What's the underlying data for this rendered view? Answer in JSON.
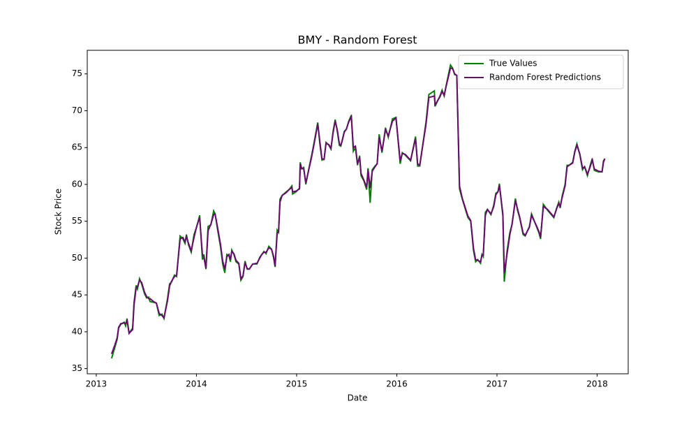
{
  "chart_data": {
    "type": "line",
    "title": "BMY - Random Forest",
    "x_label": "Date",
    "y_label": "Stock Price",
    "x": [
      2013.153,
      2013.188,
      2013.209,
      2013.223,
      2013.244,
      2013.279,
      2013.293,
      2013.307,
      2013.328,
      2013.363,
      2013.377,
      2013.398,
      2013.411,
      2013.432,
      2013.453,
      2013.481,
      2013.502,
      2013.523,
      2013.537,
      2013.572,
      2013.6,
      2013.628,
      2013.656,
      2013.676,
      2013.711,
      2013.732,
      2013.753,
      2013.781,
      2013.802,
      2013.837,
      2013.865,
      2013.886,
      2013.9,
      2013.921,
      2013.948,
      2013.976,
      2014.004,
      2014.032,
      2014.06,
      2014.074,
      2014.095,
      2014.116,
      2014.144,
      2014.172,
      2014.186,
      2014.213,
      2014.241,
      2014.262,
      2014.283,
      2014.304,
      2014.325,
      2014.339,
      2014.353,
      2014.374,
      2014.395,
      2014.423,
      2014.444,
      2014.465,
      2014.485,
      2014.506,
      2014.527,
      2014.562,
      2014.604,
      2014.632,
      2014.653,
      2014.674,
      2014.695,
      2014.723,
      2014.75,
      2014.771,
      2014.785,
      2014.806,
      2014.82,
      2014.834,
      2014.855,
      2014.897,
      2014.925,
      2014.953,
      2014.96,
      2014.995,
      2015.029,
      2015.036,
      2015.05,
      2015.071,
      2015.092,
      2015.12,
      2015.148,
      2015.176,
      2015.211,
      2015.232,
      2015.253,
      2015.274,
      2015.294,
      2015.322,
      2015.343,
      2015.364,
      2015.385,
      2015.406,
      2015.427,
      2015.441,
      2015.455,
      2015.476,
      2015.497,
      2015.518,
      2015.546,
      2015.566,
      2015.587,
      2015.608,
      2015.629,
      2015.643,
      2015.671,
      2015.699,
      2015.713,
      2015.734,
      2015.755,
      2015.783,
      2015.804,
      2015.824,
      2015.852,
      2015.887,
      2015.915,
      2015.957,
      2015.992,
      2016.034,
      2016.055,
      2016.083,
      2016.138,
      2016.187,
      2016.208,
      2016.229,
      2016.292,
      2016.32,
      2016.375,
      2016.382,
      2016.431,
      2016.452,
      2016.473,
      2016.494,
      2016.536,
      2016.557,
      2016.578,
      2016.599,
      2016.626,
      2016.654,
      2016.71,
      2016.738,
      2016.766,
      2016.787,
      2016.808,
      2016.836,
      2016.85,
      2016.863,
      2016.884,
      2016.905,
      2016.94,
      2016.968,
      2016.989,
      2017.01,
      2017.024,
      2017.059,
      2017.073,
      2017.101,
      2017.129,
      2017.15,
      2017.184,
      2017.205,
      2017.226,
      2017.261,
      2017.282,
      2017.324,
      2017.345,
      2017.394,
      2017.422,
      2017.435,
      2017.463,
      2017.505,
      2017.568,
      2017.596,
      2017.617,
      2017.631,
      2017.652,
      2017.68,
      2017.7,
      2017.721,
      2017.756,
      2017.777,
      2017.798,
      2017.826,
      2017.854,
      2017.875,
      2017.903,
      2017.931,
      2017.951,
      2017.972,
      2018.014,
      2018.049,
      2018.063,
      2018.077
    ],
    "series": [
      {
        "name": "True Values",
        "color": "#008000",
        "values": [
          36.4,
          38,
          39,
          40.5,
          41,
          41.3,
          40.8,
          41.8,
          39.8,
          40.5,
          44,
          46.3,
          45.8,
          47.2,
          46.5,
          45.2,
          44.6,
          44.7,
          44.1,
          44,
          43.9,
          42.2,
          42.4,
          41.8,
          44.5,
          46.5,
          46.8,
          47.7,
          47.5,
          53,
          52.6,
          52,
          53.2,
          51.8,
          50.8,
          53.2,
          54.3,
          55.8,
          49.8,
          50.5,
          48.5,
          54.3,
          54.5,
          56.4,
          56,
          53.7,
          51.5,
          49.2,
          48,
          50.5,
          50.3,
          49.5,
          51.1,
          50.5,
          49.5,
          49.2,
          47,
          47.5,
          49.6,
          48.5,
          48.5,
          49.2,
          49.2,
          50.1,
          50.5,
          50.9,
          50.6,
          51.6,
          51.2,
          50,
          48.8,
          53.8,
          53.5,
          58,
          58.5,
          59,
          59.3,
          59.8,
          58.7,
          59,
          59.5,
          63,
          62.1,
          62.3,
          60,
          62,
          63.8,
          65.8,
          68.4,
          65.5,
          63.3,
          63.4,
          65.7,
          65.3,
          64.8,
          67.2,
          68.8,
          67.2,
          65.3,
          65.2,
          66,
          67.2,
          67.5,
          68.5,
          69.4,
          64.5,
          65,
          62.6,
          63.9,
          61.2,
          60.5,
          59.3,
          62.2,
          57.5,
          62,
          62.5,
          62.8,
          66.8,
          64.3,
          67.7,
          66.4,
          68.9,
          69.1,
          62.8,
          64.3,
          64,
          63.2,
          66.5,
          62.5,
          62.5,
          68.5,
          72.2,
          72.7,
          70.6,
          72,
          72.8,
          72,
          73.5,
          76.2,
          75.8,
          74.9,
          74.8,
          59.4,
          58,
          55.5,
          55,
          51,
          49.5,
          49.8,
          49.3,
          50.5,
          50.2,
          56.2,
          56.6,
          55.9,
          57.2,
          58.8,
          59,
          60.1,
          55.7,
          46.8,
          51,
          53.5,
          54.5,
          58.1,
          56.5,
          55.5,
          53.2,
          53,
          54.3,
          56,
          54.3,
          53.3,
          52.6,
          57.3,
          56.5,
          55.5,
          56.8,
          57.6,
          56.8,
          58.5,
          60,
          62.6,
          62.6,
          63,
          64.5,
          65.5,
          64.1,
          62,
          62.4,
          61.2,
          62.6,
          63.5,
          61.9,
          61.7,
          61.7,
          63.2,
          63.5
        ]
      },
      {
        "name": "Random Forest Predictions",
        "color": "#6a0a6e",
        "values": [
          37,
          38.3,
          39.2,
          40.6,
          41.1,
          41.2,
          41.1,
          41.5,
          39.8,
          40.3,
          43.6,
          46,
          46.1,
          47,
          46.7,
          45.4,
          44.8,
          44.5,
          44.5,
          44.1,
          43.9,
          42.5,
          42.2,
          41.9,
          44.2,
          46.2,
          46.9,
          47.5,
          47.7,
          52.6,
          52.8,
          52.2,
          52.9,
          52,
          51,
          52.8,
          54.4,
          55.5,
          50.4,
          50.1,
          48.6,
          53.7,
          54.6,
          55.9,
          56,
          54,
          51.8,
          49.6,
          48.5,
          50.2,
          50.5,
          49.8,
          50.9,
          50.6,
          49.7,
          49.3,
          47.2,
          47.6,
          49.4,
          48.6,
          48.5,
          49.2,
          49.3,
          50,
          50.5,
          50.8,
          50.8,
          51.4,
          51.2,
          50.2,
          48.9,
          53.4,
          53.6,
          57.6,
          58.5,
          58.9,
          59.3,
          59.6,
          59,
          59.1,
          59.4,
          62.8,
          62.2,
          62.1,
          60.2,
          61.9,
          63.6,
          65.6,
          68.2,
          65.8,
          63.5,
          63.4,
          65.6,
          65.4,
          64.9,
          67,
          68.6,
          67.4,
          65.5,
          65.3,
          65.9,
          67.1,
          67.5,
          68.4,
          69.2,
          65,
          65.2,
          62.8,
          63.7,
          61.5,
          60.6,
          59.6,
          62,
          59.5,
          61.8,
          62.4,
          62.8,
          66.4,
          64.5,
          67.4,
          66.6,
          68.6,
          69,
          63.2,
          64.2,
          64.1,
          63.3,
          66.2,
          62.8,
          62.6,
          68.2,
          71.8,
          72,
          70.8,
          71.9,
          72.6,
          72.1,
          73.4,
          75.8,
          75.7,
          75,
          74.8,
          59.8,
          58.1,
          55.7,
          55.1,
          51.3,
          49.8,
          49.7,
          49.5,
          50.4,
          50.4,
          55.8,
          56.6,
          56,
          57,
          58.6,
          59,
          59.9,
          56,
          48,
          50.6,
          53.2,
          54.6,
          57.8,
          56.7,
          55.6,
          53.4,
          53.1,
          54.2,
          55.8,
          54.4,
          53.5,
          52.8,
          57,
          56.6,
          55.6,
          56.7,
          57.4,
          57,
          58.3,
          59.8,
          62.4,
          62.6,
          62.9,
          64.4,
          65.3,
          64.2,
          62.2,
          62.4,
          61.4,
          62.4,
          63.3,
          62.1,
          61.8,
          61.7,
          63,
          63.5
        ]
      }
    ],
    "xlim": [
      2012.91,
      2018.31
    ],
    "xticks": [
      2013,
      2014,
      2015,
      2016,
      2017,
      2018
    ],
    "ylim": [
      34.3,
      78.2
    ],
    "yticks": [
      35,
      40,
      45,
      50,
      55,
      60,
      65,
      70,
      75
    ],
    "legend": "upper right",
    "grid": false
  }
}
